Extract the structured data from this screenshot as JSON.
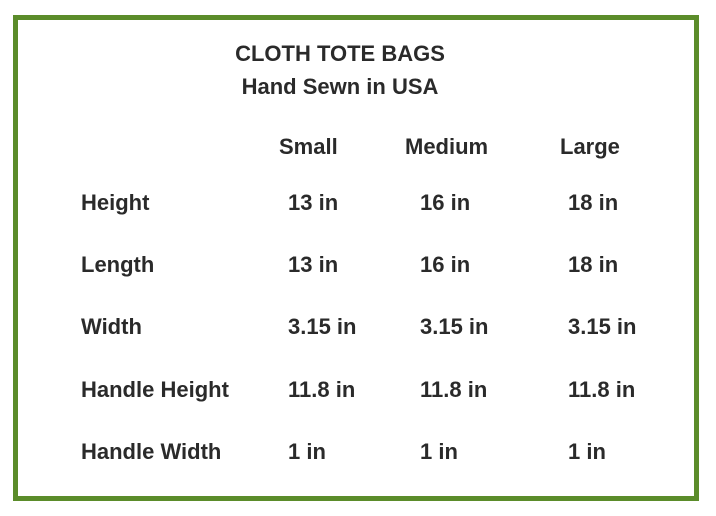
{
  "title": "CLOTH TOTE BAGS",
  "subtitle": "Hand Sewn in USA",
  "columns": [
    "Small",
    "Medium",
    "Large"
  ],
  "rows": [
    {
      "label": "Height",
      "values": [
        "13 in",
        "16 in",
        "18 in"
      ]
    },
    {
      "label": "Length",
      "values": [
        "13 in",
        "16 in",
        "18 in"
      ]
    },
    {
      "label": "Width",
      "values": [
        "3.15 in",
        "3.15 in",
        "3.15 in"
      ]
    },
    {
      "label": "Handle Height",
      "values": [
        "11.8 in",
        "11.8 in",
        "11.8 in"
      ]
    },
    {
      "label": "Handle Width",
      "values": [
        "1 in",
        "1 in",
        "1 in"
      ]
    }
  ],
  "colors": {
    "border": "#5b8c2a",
    "text": "#2a2a2a"
  }
}
